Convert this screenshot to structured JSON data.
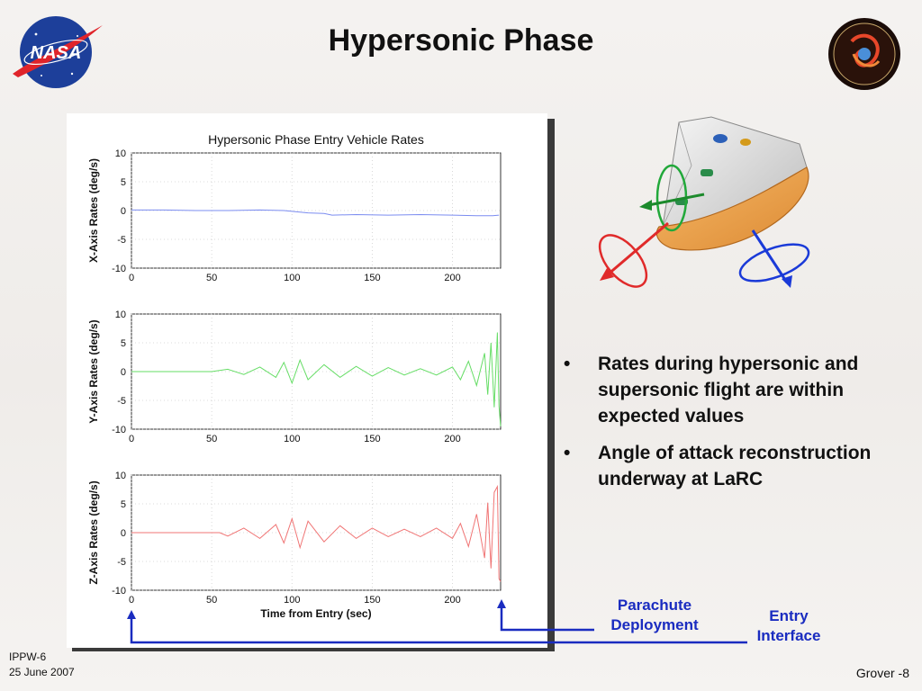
{
  "slide": {
    "title": "Hypersonic Phase",
    "bullets": [
      "Rates during hypersonic and supersonic flight are within expected values",
      "Angle of attack reconstruction underway at LaRC"
    ],
    "annotations": {
      "parachute": "Parachute Deployment",
      "entry": "Entry Interface"
    },
    "footer": {
      "line1": "IPPW-6",
      "line2": "25 June 2007",
      "page": "Grover -8"
    },
    "logos": {
      "nasa": {
        "text": "NASA"
      },
      "phoenix": {
        "text": "Phoenix Mars Lander 2007"
      }
    },
    "colors": {
      "annotation_blue": "#1a2cc0",
      "x_series": "#7b8cf0",
      "y_series": "#66dd66",
      "z_series": "#f07575"
    }
  },
  "chart_data": [
    {
      "type": "line",
      "title": "Hypersonic Phase Entry Vehicle Rates",
      "xlabel": "",
      "ylabel": "X-Axis Rates (deg/s)",
      "xlim": [
        0,
        230
      ],
      "ylim": [
        -10,
        10
      ],
      "xticks": [
        "0",
        "50",
        "100",
        "150",
        "200"
      ],
      "yticks": [
        "10",
        "5",
        "0",
        "-5",
        "-10"
      ],
      "grid": true,
      "series": [
        {
          "color": "#7b8cf0",
          "x": [
            0,
            20,
            40,
            60,
            80,
            95,
            110,
            120,
            125,
            140,
            160,
            180,
            200,
            215,
            225,
            229
          ],
          "y": [
            0.1,
            0.1,
            0.0,
            0.0,
            0.1,
            0.0,
            -0.4,
            -0.5,
            -0.8,
            -0.7,
            -0.8,
            -0.7,
            -0.8,
            -0.9,
            -0.9,
            -0.8
          ]
        }
      ]
    },
    {
      "type": "line",
      "xlabel": "",
      "ylabel": "Y-Axis Rates (deg/s)",
      "xlim": [
        0,
        230
      ],
      "ylim": [
        -10,
        10
      ],
      "xticks": [
        "0",
        "50",
        "100",
        "150",
        "200"
      ],
      "yticks": [
        "10",
        "5",
        "0",
        "-5",
        "-10"
      ],
      "grid": true,
      "series": [
        {
          "color": "#66dd66",
          "x": [
            0,
            30,
            50,
            60,
            70,
            80,
            90,
            95,
            100,
            105,
            110,
            120,
            130,
            140,
            150,
            160,
            170,
            180,
            190,
            200,
            205,
            210,
            215,
            220,
            222,
            224,
            226,
            228,
            229,
            230
          ],
          "y": [
            0,
            0,
            0,
            0.4,
            -0.5,
            0.8,
            -1.0,
            1.6,
            -2.0,
            2.0,
            -1.4,
            1.2,
            -1.0,
            0.9,
            -0.8,
            0.7,
            -0.6,
            0.5,
            -0.6,
            0.8,
            -1.4,
            1.8,
            -2.4,
            3.2,
            -4.0,
            5.0,
            -6.2,
            6.8,
            -6.0,
            -9.5
          ]
        }
      ]
    },
    {
      "type": "line",
      "xlabel": "Time from Entry (sec)",
      "ylabel": "Z-Axis Rates (deg/s)",
      "xlim": [
        0,
        230
      ],
      "ylim": [
        -10,
        10
      ],
      "xticks": [
        "0",
        "50",
        "100",
        "150",
        "200"
      ],
      "yticks": [
        "10",
        "5",
        "0",
        "-5",
        "-10"
      ],
      "grid": true,
      "series": [
        {
          "color": "#f07575",
          "x": [
            0,
            40,
            55,
            60,
            70,
            80,
            90,
            95,
            100,
            105,
            110,
            120,
            130,
            140,
            150,
            160,
            170,
            180,
            190,
            200,
            205,
            210,
            215,
            220,
            222,
            224,
            226,
            228,
            229,
            230
          ],
          "y": [
            0,
            0,
            0,
            -0.6,
            0.8,
            -1.0,
            1.4,
            -1.8,
            2.4,
            -2.6,
            2.0,
            -1.6,
            1.2,
            -1.0,
            0.8,
            -0.7,
            0.6,
            -0.7,
            0.8,
            -1.0,
            1.6,
            -2.4,
            3.2,
            -4.4,
            5.2,
            -6.2,
            7.0,
            8.0,
            -8.0,
            -8.5
          ]
        }
      ]
    }
  ]
}
